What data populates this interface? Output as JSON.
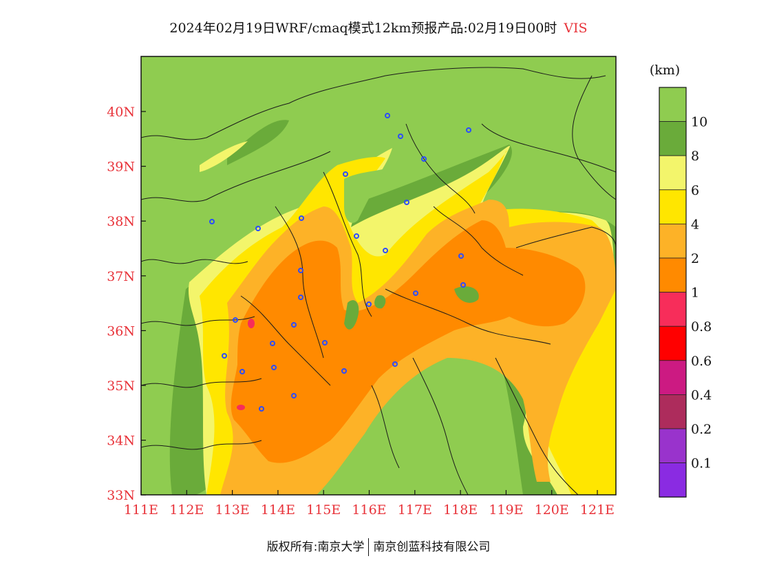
{
  "title": {
    "text": "2024年02月19日WRF/cmaq模式12km预报产品:02月19日00时",
    "variable": "VIS"
  },
  "axes": {
    "lat_ticks": [
      "40N",
      "39N",
      "38N",
      "37N",
      "36N",
      "35N",
      "34N",
      "33N"
    ],
    "lon_ticks": [
      "111E",
      "112E",
      "113E",
      "114E",
      "115E",
      "116E",
      "117E",
      "118E",
      "119E",
      "120E",
      "121E"
    ]
  },
  "legend": {
    "unit": "(km)",
    "classes": [
      {
        "color": "#8fcc50"
      },
      {
        "color": "#6aab3a"
      },
      {
        "color": "#f3f56b"
      },
      {
        "color": "#ffe600"
      },
      {
        "color": "#fdb227"
      },
      {
        "color": "#ff8a00"
      },
      {
        "color": "#f72d5a"
      },
      {
        "color": "#ff0000"
      },
      {
        "color": "#cc1a82"
      },
      {
        "color": "#ad2c5c"
      },
      {
        "color": "#9933cc"
      },
      {
        "color": "#8a2be2"
      }
    ],
    "labels": [
      "10",
      "8",
      "6",
      "4",
      "2",
      "1",
      "0.8",
      "0.6",
      "0.4",
      "0.2",
      "0.1"
    ]
  },
  "colors": {
    "land": "#8fcc50",
    "dark_green": "#6aab3a",
    "light_yellow": "#f3f56b",
    "yellow": "#ffe600",
    "light_orange": "#fdb227",
    "orange": "#ff8a00",
    "pink": "#f72d5a",
    "station": "#2b4cff",
    "tick_red": "#e8333a"
  },
  "footer": {
    "left": "版权所有:南京大学",
    "right": "南京创蓝科技有限公司"
  }
}
